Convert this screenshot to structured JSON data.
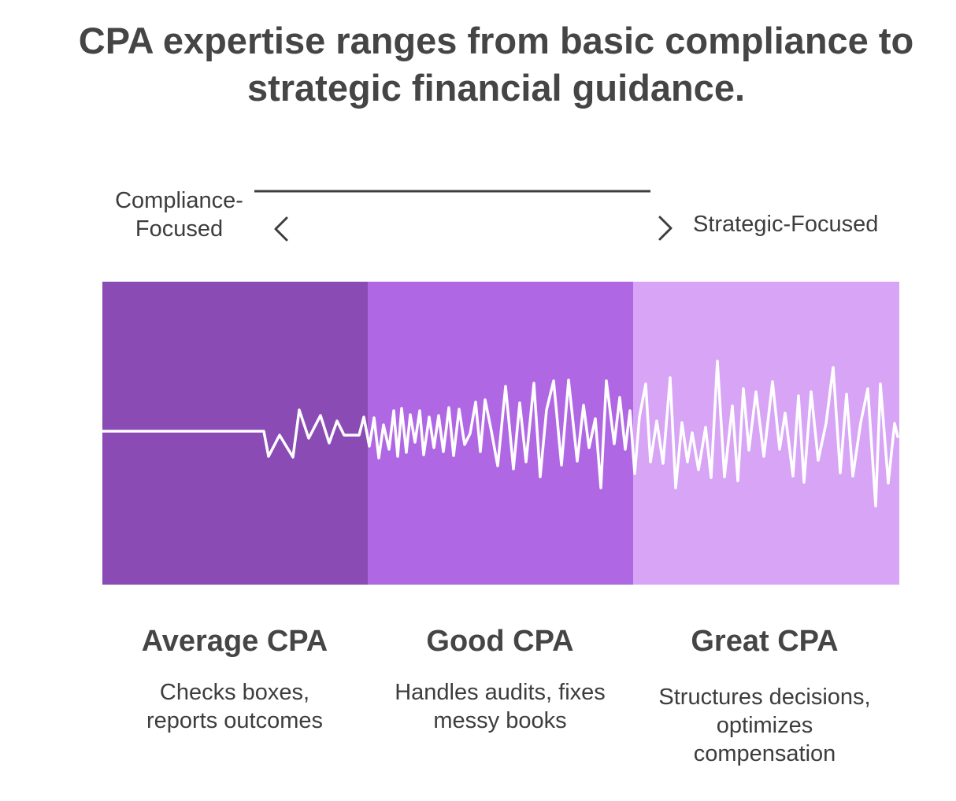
{
  "title": {
    "line1": "CPA expertise ranges from basic compliance to",
    "line2": "strategic financial guidance."
  },
  "axis": {
    "left_label_line1": "Compliance-",
    "left_label_line2": "Focused",
    "right_label": "Strategic-Focused",
    "left_arrow_icon": "chevron-left-icon",
    "right_arrow_icon": "chevron-right-icon"
  },
  "bands": [
    {
      "name": "Average CPA",
      "color": "#8a4bb4"
    },
    {
      "name": "Good CPA",
      "color": "#b067e4"
    },
    {
      "name": "Great CPA",
      "color": "#d7a4f6"
    }
  ],
  "columns": [
    {
      "heading": "Average CPA",
      "desc_line1": "Checks boxes,",
      "desc_line2": "reports outcomes",
      "desc_line3": ""
    },
    {
      "heading": "Good CPA",
      "desc_line1": "Handles audits, fixes",
      "desc_line2": "messy books",
      "desc_line3": ""
    },
    {
      "heading": "Great CPA",
      "desc_line1": "Structures decisions,",
      "desc_line2": "optimizes",
      "desc_line3": "compensation"
    }
  ],
  "colors": {
    "text": "#3d3d3d",
    "title": "#454545",
    "wave": "#ffffff"
  }
}
